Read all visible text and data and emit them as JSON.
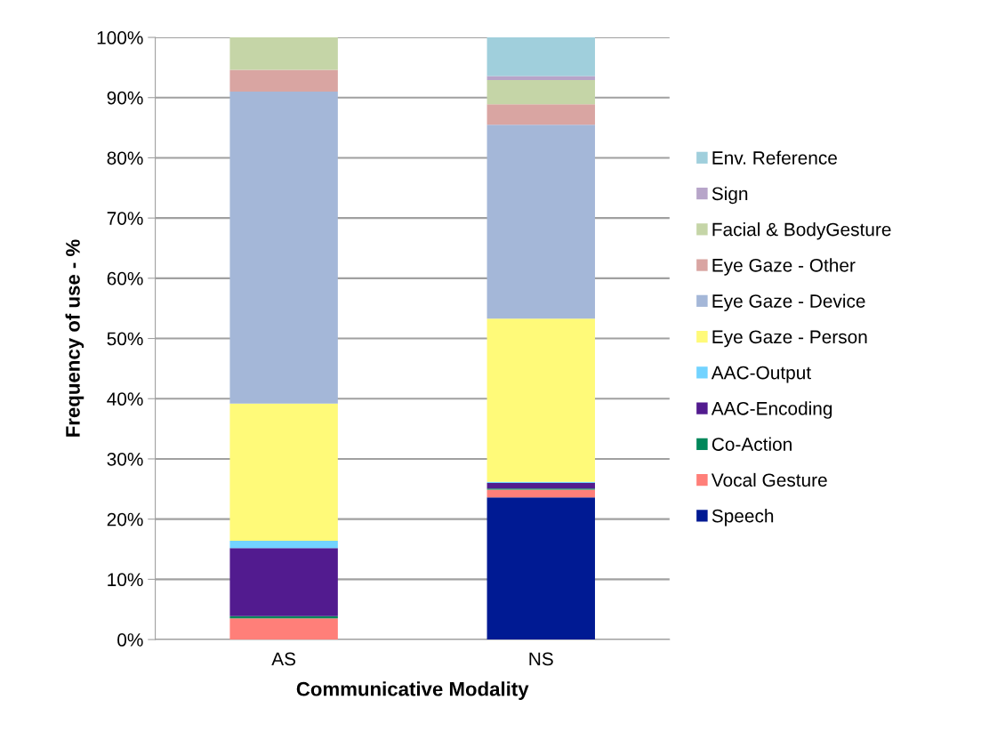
{
  "chart_data": {
    "type": "bar",
    "stacked": true,
    "xlabel": "Communicative Modality",
    "ylabel": "Frequency of use - %",
    "categories": [
      "AS",
      "NS"
    ],
    "series": [
      {
        "name": "Speech",
        "color": "#001a93",
        "values": [
          0,
          23.6
        ]
      },
      {
        "name": "Vocal Gesture",
        "color": "#ff7f79",
        "values": [
          3.5,
          1.3
        ]
      },
      {
        "name": "Co-Action",
        "color": "#00875a",
        "values": [
          0.4,
          0.2
        ]
      },
      {
        "name": "AAC-Encoding",
        "color": "#521b8f",
        "values": [
          11.3,
          0.9
        ]
      },
      {
        "name": "AAC-Output",
        "color": "#72d3ff",
        "values": [
          1.2,
          0.2
        ]
      },
      {
        "name": "Eye Gaze - Person",
        "color": "#fffa79",
        "values": [
          22.8,
          27.1
        ]
      },
      {
        "name": "Eye Gaze - Device",
        "color": "#a4b7d8",
        "values": [
          51.8,
          32.2
        ]
      },
      {
        "name": "Eye Gaze - Other",
        "color": "#d9a5a2",
        "values": [
          3.6,
          3.4
        ]
      },
      {
        "name": "Facial & BodyGesture",
        "color": "#c5d5a7",
        "values": [
          5.4,
          4.0
        ]
      },
      {
        "name": "Sign",
        "color": "#b7a5c9",
        "values": [
          0,
          0.7
        ]
      },
      {
        "name": "Env. Reference",
        "color": "#a0cfdc",
        "values": [
          0,
          6.4
        ]
      }
    ],
    "ylim": [
      0,
      100
    ],
    "yticks": [
      {
        "value": 0,
        "label": "0%"
      },
      {
        "value": 10,
        "label": "10%"
      },
      {
        "value": 20,
        "label": "20%"
      },
      {
        "value": 30,
        "label": "30%"
      },
      {
        "value": 40,
        "label": "40%"
      },
      {
        "value": 50,
        "label": "50%"
      },
      {
        "value": 60,
        "label": "60%"
      },
      {
        "value": 70,
        "label": "70%"
      },
      {
        "value": 80,
        "label": "80%"
      },
      {
        "value": 90,
        "label": "90%"
      },
      {
        "value": 100,
        "label": "100%"
      }
    ],
    "grid": "y",
    "legend": "right"
  }
}
